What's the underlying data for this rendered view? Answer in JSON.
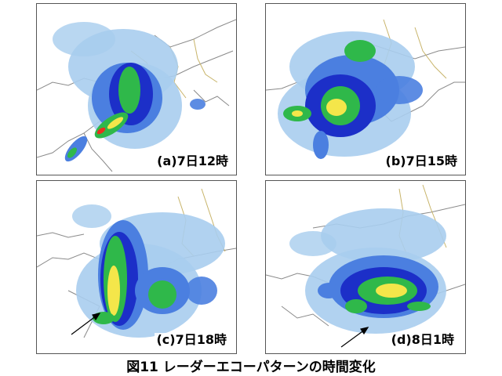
{
  "figure": {
    "caption": "図11  レーダーエコーパターンの時間変化",
    "panels": [
      {
        "id": "a",
        "label": "(a)7日12時"
      },
      {
        "id": "b",
        "label": "(b)7日15時"
      },
      {
        "id": "c",
        "label": "(c)7日18時"
      },
      {
        "id": "d",
        "label": "(d)8日1時"
      }
    ]
  },
  "colors": {
    "light_echo": "#a8cdee",
    "medium_echo": "#4b7fe0",
    "heavy_echo": "#1c2fc8",
    "green_echo": "#2fb84a",
    "yellow_echo": "#f4e64a",
    "red_echo": "#e8321c",
    "coast_line": "#8a8a8a",
    "boundary_line": "#c8b46a"
  }
}
